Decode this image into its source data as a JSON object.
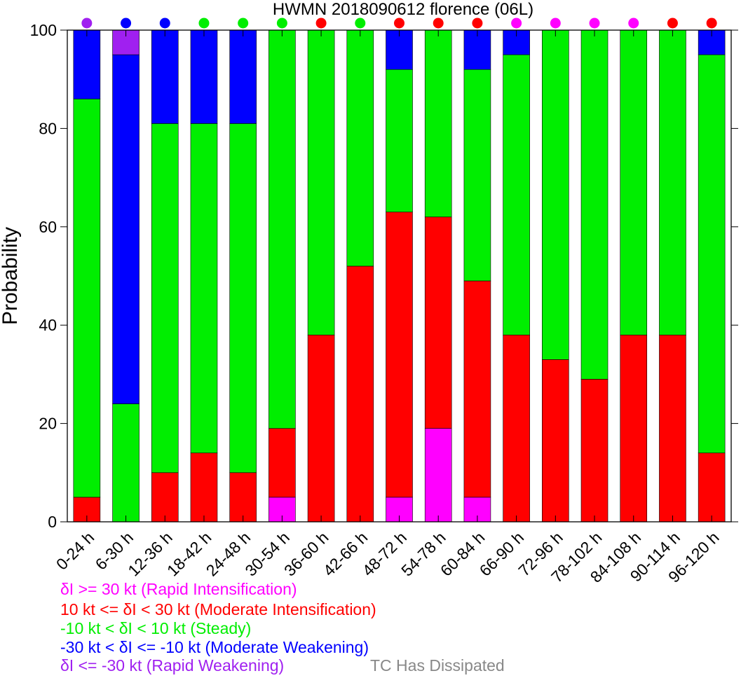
{
  "chart_data": {
    "type": "bar",
    "stacked": true,
    "title": "HWMN 2018090612 florence (06L)",
    "xlabel": "",
    "ylabel": "Probability",
    "ylim": [
      0,
      100
    ],
    "yticks": [
      0,
      20,
      40,
      60,
      80,
      100
    ],
    "grid": false,
    "legend_placement": "bottom-left",
    "categories": [
      "0-24 h",
      "6-30 h",
      "12-36 h",
      "18-42 h",
      "24-48 h",
      "30-54 h",
      "36-60 h",
      "42-66 h",
      "48-72 h",
      "54-78 h",
      "60-84 h",
      "66-90 h",
      "72-96 h",
      "78-102 h",
      "84-108 h",
      "90-114 h",
      "96-120 h"
    ],
    "series": [
      {
        "name": "δI >= 30 kt (Rapid Intensification)",
        "color": "#ff00ff",
        "values": [
          0,
          0,
          0,
          0,
          0,
          5,
          0,
          0,
          5,
          19,
          5,
          0,
          0,
          0,
          0,
          0,
          0
        ]
      },
      {
        "name": "10 kt <= δI < 30 kt (Moderate Intensification)",
        "color": "#ff0000",
        "values": [
          5,
          0,
          10,
          14,
          10,
          14,
          38,
          52,
          58,
          43,
          44,
          38,
          33,
          29,
          38,
          38,
          14
        ]
      },
      {
        "name": "-10 kt < δI < 10 kt (Steady)",
        "color": "#00ee00",
        "values": [
          81,
          24,
          71,
          67,
          71,
          81,
          62,
          48,
          29,
          38,
          43,
          57,
          67,
          71,
          62,
          62,
          81
        ]
      },
      {
        "name": "-30 kt < δI <= -10 kt (Moderate Weakening)",
        "color": "#0000ff",
        "values": [
          14,
          71,
          19,
          19,
          19,
          0,
          0,
          0,
          8,
          0,
          8,
          5,
          0,
          0,
          0,
          0,
          5
        ]
      },
      {
        "name": "δI <= -30 kt (Rapid Weakening)",
        "color": "#a020f0",
        "values": [
          0,
          5,
          0,
          0,
          0,
          0,
          0,
          0,
          0,
          0,
          0,
          0,
          0,
          0,
          0,
          0,
          0
        ]
      }
    ],
    "dissipated_label": "TC Has Dissipated",
    "dissipated_color": "#888888",
    "top_dot_colors": [
      "#a020f0",
      "#0000ff",
      "#0000ff",
      "#00ee00",
      "#00ee00",
      "#00ee00",
      "#ff0000",
      "#00ee00",
      "#ff0000",
      "#ff0000",
      "#ff0000",
      "#ff00ff",
      "#ff00ff",
      "#ff00ff",
      "#ff00ff",
      "#ff0000",
      "#ff0000"
    ]
  }
}
